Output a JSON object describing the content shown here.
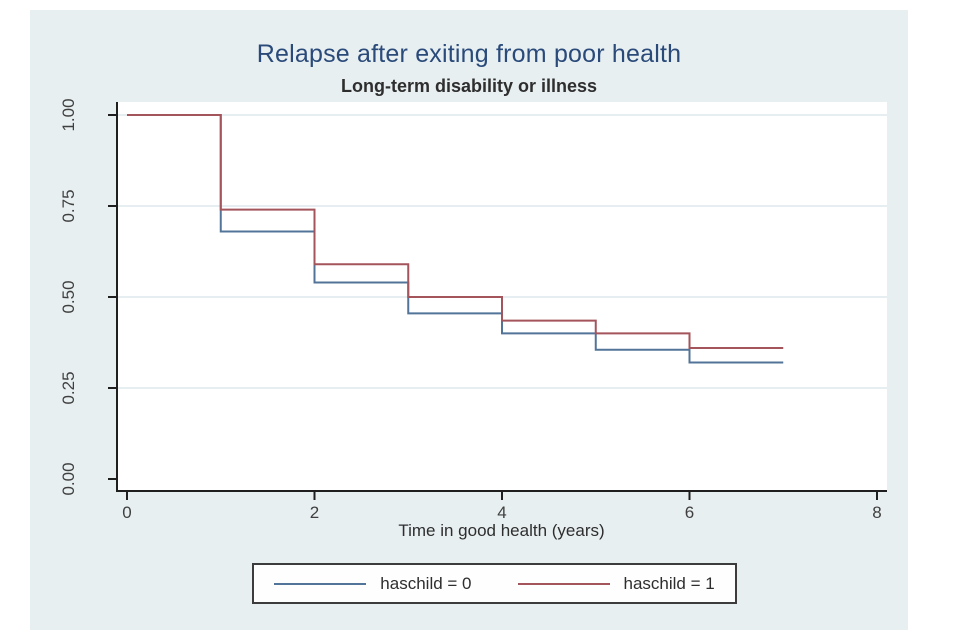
{
  "chart_data": {
    "type": "line",
    "subtype": "kaplan-meier-step",
    "title": "Relapse after exiting from poor health",
    "subtitle": "Long-term disability or illness",
    "xlabel": "Time in good health (years)",
    "ylabel": "",
    "xlim": [
      0,
      8
    ],
    "ylim": [
      0.0,
      1.0
    ],
    "xticks": [
      "0",
      "2",
      "4",
      "6",
      "8"
    ],
    "yticks": [
      "0.00",
      "0.25",
      "0.50",
      "0.75",
      "1.00"
    ],
    "grid": "horizontal-only",
    "legend_position": "bottom-center-boxed",
    "series": [
      {
        "name": "haschild = 0",
        "color": "#527499",
        "step_x": [
          0,
          1,
          2,
          3,
          4,
          5,
          6
        ],
        "values": [
          1.0,
          0.68,
          0.54,
          0.455,
          0.4,
          0.355,
          0.32
        ],
        "end_x": 7
      },
      {
        "name": "haschild = 1",
        "color": "#a4545b",
        "step_x": [
          0,
          1,
          2,
          3,
          4,
          5,
          6
        ],
        "values": [
          1.0,
          0.74,
          0.59,
          0.5,
          0.435,
          0.4,
          0.36
        ],
        "end_x": 7
      }
    ],
    "colors": {
      "title": "#2a4a7a",
      "figure_bg": "#e8eff1",
      "plot_bg": "#ffffff",
      "grid": "#dde9ed",
      "axis": "#1f1f1f",
      "tick_text": "#3f3f3f"
    }
  }
}
